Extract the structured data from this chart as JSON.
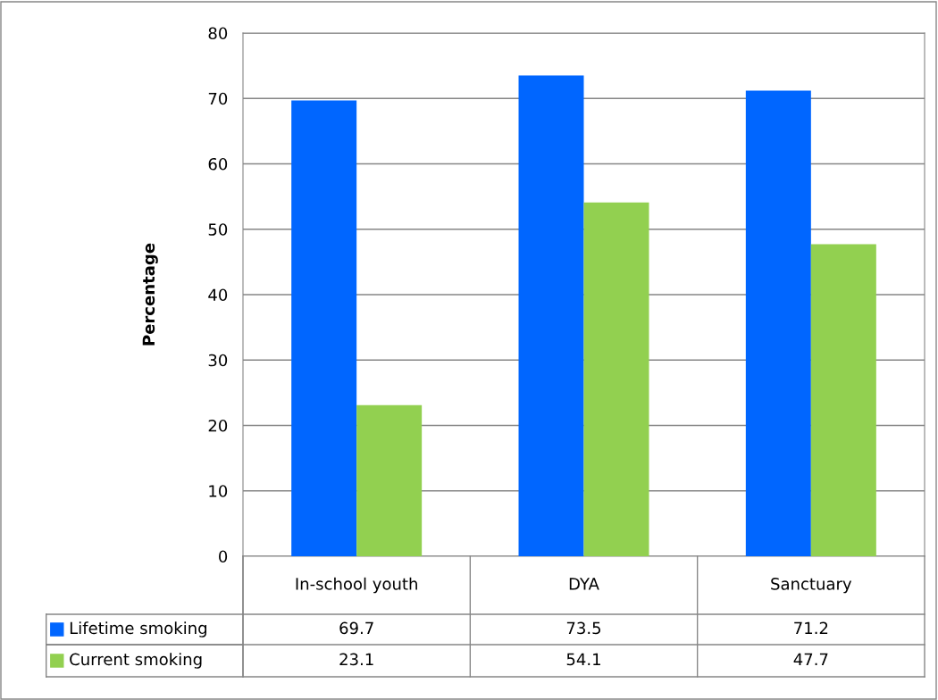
{
  "chart_data": {
    "type": "bar",
    "ylabel": "Percentage",
    "categories": [
      "In-school youth",
      "DYA",
      "Sanctuary"
    ],
    "series": [
      {
        "name": "Lifetime smoking",
        "color": "#0066ff",
        "values": [
          69.7,
          73.5,
          71.2
        ]
      },
      {
        "name": "Current smoking",
        "color": "#92d050",
        "values": [
          23.1,
          54.1,
          47.7
        ]
      }
    ],
    "ylim": [
      0,
      80
    ],
    "yticks": [
      0,
      10,
      20,
      30,
      40,
      50,
      60,
      70,
      80
    ],
    "grid": "y",
    "legend": "bottom",
    "data_labels": true
  }
}
